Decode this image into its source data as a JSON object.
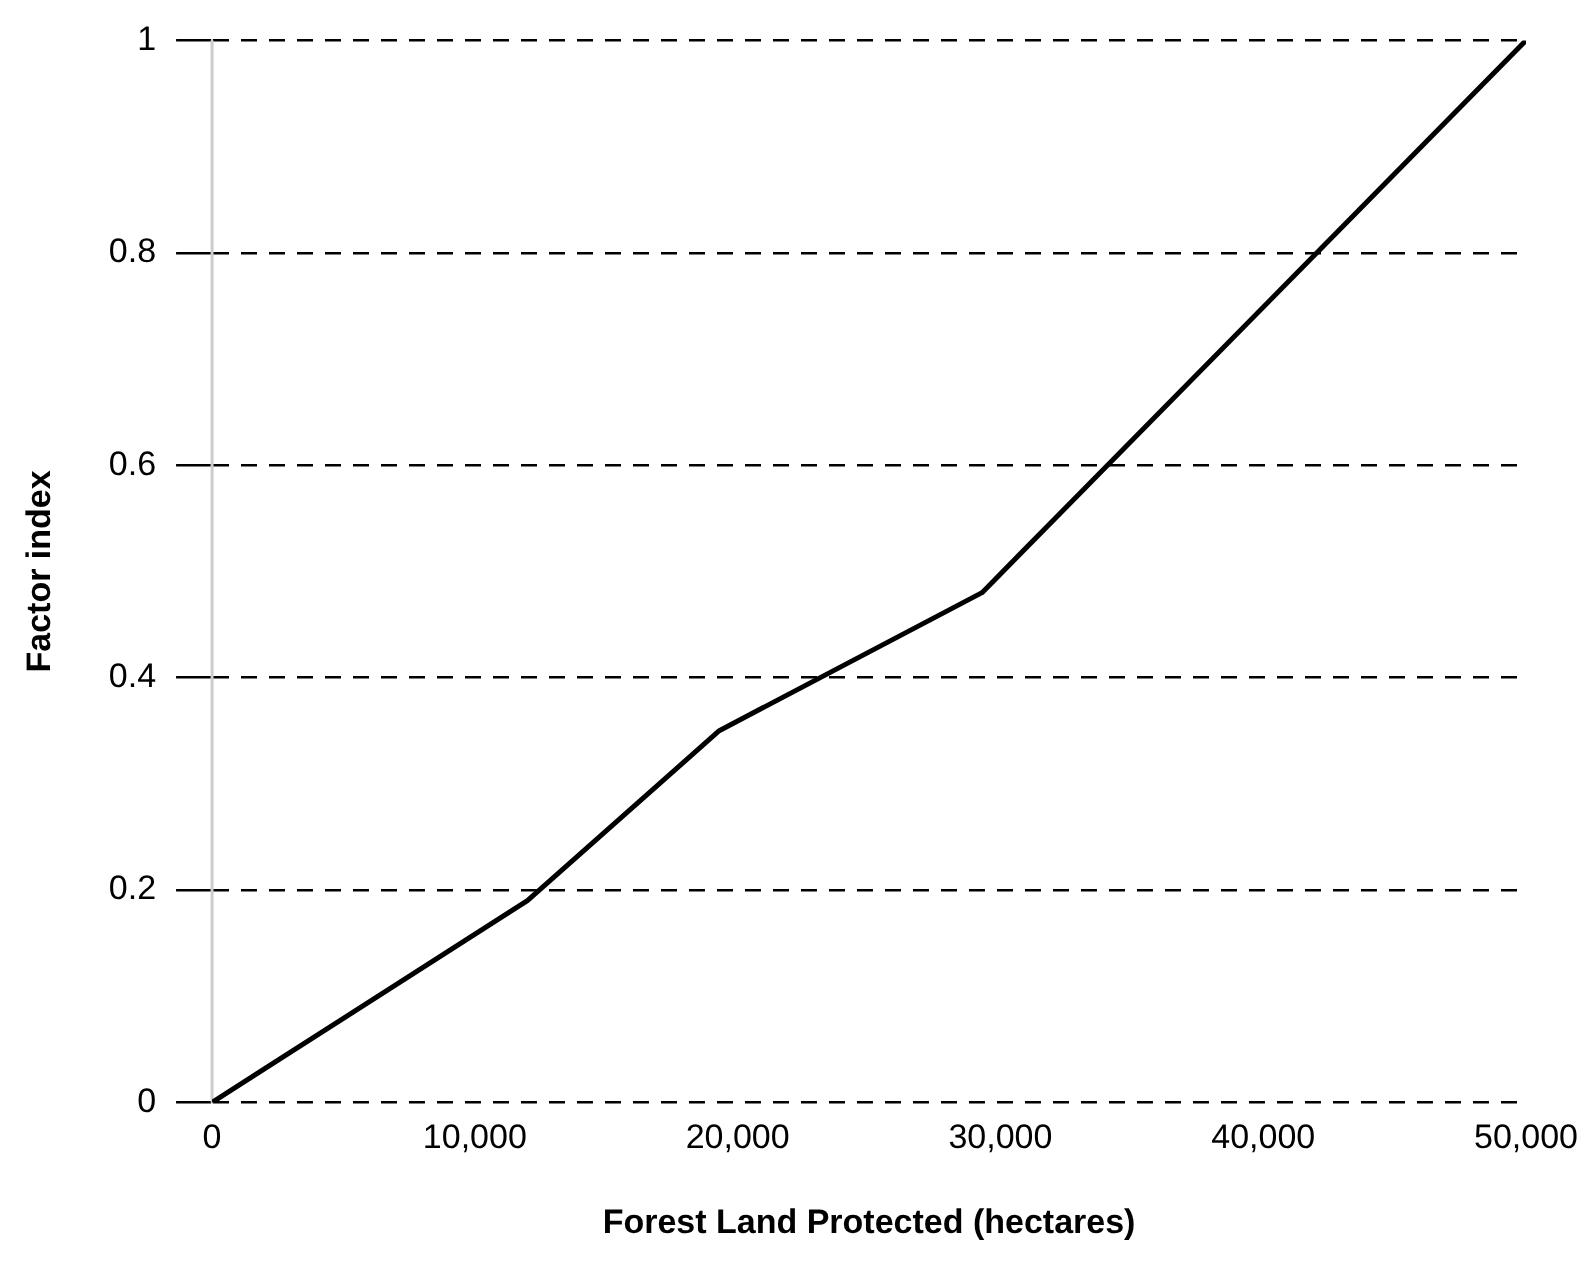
{
  "chart_data": {
    "type": "line",
    "xlabel": "Forest Land Protected (hectares)",
    "ylabel": "Factor index",
    "x": [
      0,
      12000,
      19300,
      29300,
      50000
    ],
    "series": [
      {
        "color": "#000000",
        "values": [
          0,
          0.19,
          0.35,
          0.48,
          1
        ]
      }
    ],
    "xlim": [
      0,
      50000
    ],
    "xticks": [
      {
        "value": 0,
        "label": "0"
      },
      {
        "value": 10000,
        "label": "10,000"
      },
      {
        "value": 20000,
        "label": "20,000"
      },
      {
        "value": 30000,
        "label": "30,000"
      },
      {
        "value": 40000,
        "label": "40,000"
      },
      {
        "value": 50000,
        "label": "50,000"
      }
    ],
    "ylim": [
      0,
      1
    ],
    "yticks": [
      0,
      0.2,
      0.4,
      0.6,
      0.8,
      1
    ],
    "grid": "y",
    "legend": false,
    "marker": "none",
    "line_style": "solid"
  }
}
